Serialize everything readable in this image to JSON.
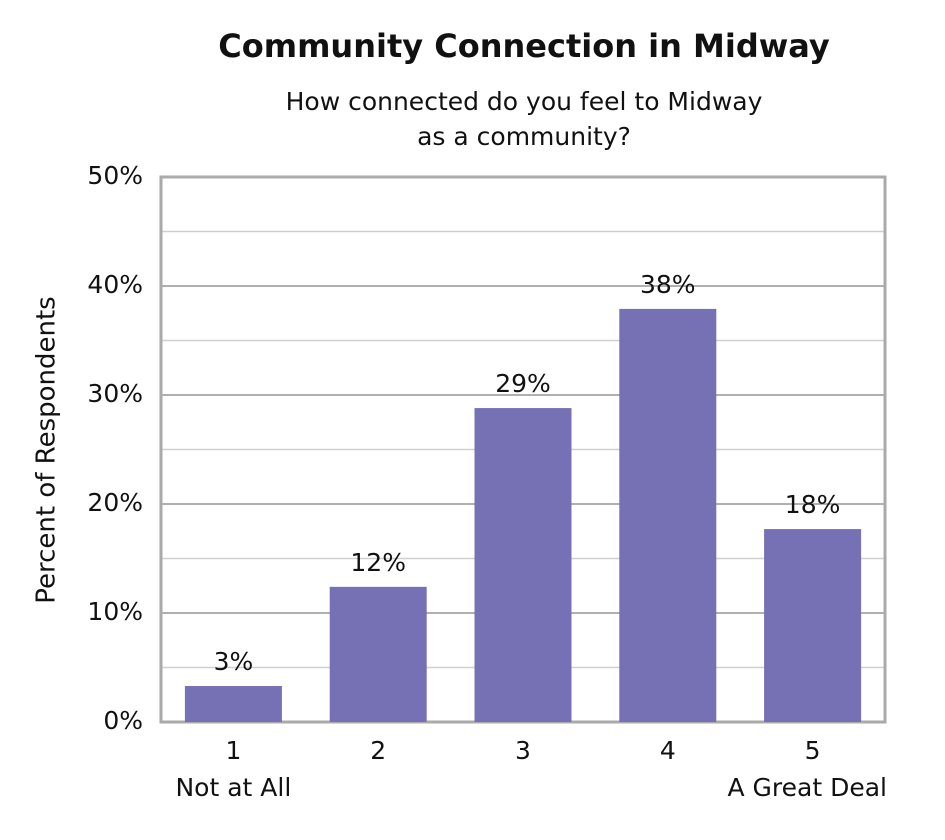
{
  "chart_data": {
    "type": "bar",
    "title": "Community Connection in Midway",
    "subtitle": [
      "How connected do you feel to Midway",
      "as a community?"
    ],
    "y_label": "Percent of Respondents",
    "categories": [
      "1",
      "2",
      "3",
      "4",
      "5"
    ],
    "category_sublabels": [
      "Not at All",
      null,
      null,
      null,
      "A Great Deal"
    ],
    "values": [
      3.3,
      12.4,
      28.8,
      37.9,
      17.7
    ],
    "value_labels": [
      "3%",
      "12%",
      "29%",
      "38%",
      "18%"
    ],
    "color": "#7671b4",
    "ylim": [
      0,
      50
    ],
    "yticks": [
      {
        "value": 0,
        "label": "0%"
      },
      {
        "value": 10,
        "label": "10%"
      },
      {
        "value": 20,
        "label": "20%"
      },
      {
        "value": 30,
        "label": "30%"
      },
      {
        "value": 40,
        "label": "40%"
      },
      {
        "value": 50,
        "label": "50%"
      }
    ],
    "minor_yticks": [
      5,
      15,
      25,
      35,
      45
    ],
    "grid": true
  }
}
